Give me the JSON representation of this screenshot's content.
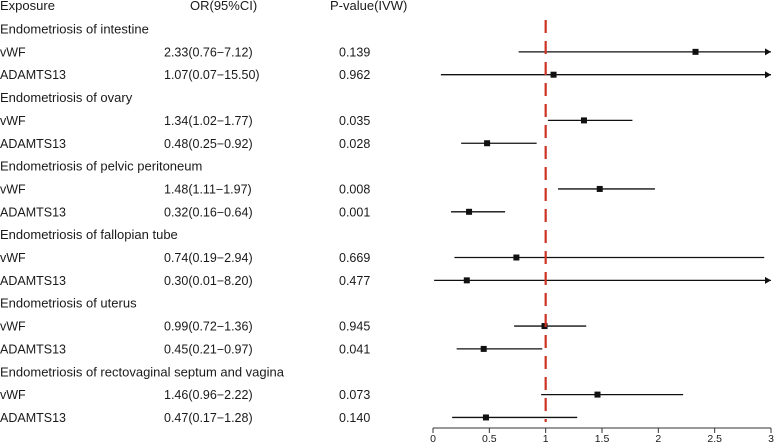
{
  "chart_data": {
    "type": "forest",
    "headers": {
      "exposure": "Exposure",
      "or": "OR(95%CI)",
      "pvalue": "P-value(IVW)"
    },
    "xlim": [
      0,
      3
    ],
    "xticks": [
      "0",
      "0.5",
      "1",
      "1.5",
      "2",
      "2.5",
      "3"
    ],
    "reference_line": 1,
    "reference_color": "#cc3322",
    "groups": [
      {
        "label": "Endometriosis of intestine",
        "rows": [
          {
            "exposure": "vWF",
            "or_ci": "2.33(0.76−7.12)",
            "or": 2.33,
            "lower": 0.76,
            "upper": 7.12,
            "p": "0.139"
          },
          {
            "exposure": "ADAMTS13",
            "or_ci": "1.07(0.07−15.50)",
            "or": 1.07,
            "lower": 0.07,
            "upper": 15.5,
            "p": "0.962"
          }
        ]
      },
      {
        "label": "Endometriosis of ovary",
        "rows": [
          {
            "exposure": "vWF",
            "or_ci": "1.34(1.02−1.77)",
            "or": 1.34,
            "lower": 1.02,
            "upper": 1.77,
            "p": "0.035"
          },
          {
            "exposure": "ADAMTS13",
            "or_ci": "0.48(0.25−0.92)",
            "or": 0.48,
            "lower": 0.25,
            "upper": 0.92,
            "p": "0.028"
          }
        ]
      },
      {
        "label": "Endometriosis of pelvic peritoneum",
        "rows": [
          {
            "exposure": "vWF",
            "or_ci": "1.48(1.11−1.97)",
            "or": 1.48,
            "lower": 1.11,
            "upper": 1.97,
            "p": "0.008"
          },
          {
            "exposure": "ADAMTS13",
            "or_ci": "0.32(0.16−0.64)",
            "or": 0.32,
            "lower": 0.16,
            "upper": 0.64,
            "p": "0.001"
          }
        ]
      },
      {
        "label": "Endometriosis of fallopian tube",
        "rows": [
          {
            "exposure": "vWF",
            "or_ci": "0.74(0.19−2.94)",
            "or": 0.74,
            "lower": 0.19,
            "upper": 2.94,
            "p": "0.669"
          },
          {
            "exposure": "ADAMTS13",
            "or_ci": "0.30(0.01−8.20)",
            "or": 0.3,
            "lower": 0.01,
            "upper": 8.2,
            "p": "0.477"
          }
        ]
      },
      {
        "label": "Endometriosis of uterus",
        "rows": [
          {
            "exposure": "vWF",
            "or_ci": "0.99(0.72−1.36)",
            "or": 0.99,
            "lower": 0.72,
            "upper": 1.36,
            "p": "0.945"
          },
          {
            "exposure": "ADAMTS13",
            "or_ci": "0.45(0.21−0.97)",
            "or": 0.45,
            "lower": 0.21,
            "upper": 0.97,
            "p": "0.041"
          }
        ]
      },
      {
        "label": "Endometriosis of rectovaginal septum and vagina",
        "rows": [
          {
            "exposure": "vWF",
            "or_ci": "1.46(0.96−2.22)",
            "or": 1.46,
            "lower": 0.96,
            "upper": 2.22,
            "p": "0.073"
          },
          {
            "exposure": "ADAMTS13",
            "or_ci": "0.47(0.17−1.28)",
            "or": 0.47,
            "lower": 0.17,
            "upper": 1.28,
            "p": "0.140"
          }
        ]
      }
    ]
  }
}
